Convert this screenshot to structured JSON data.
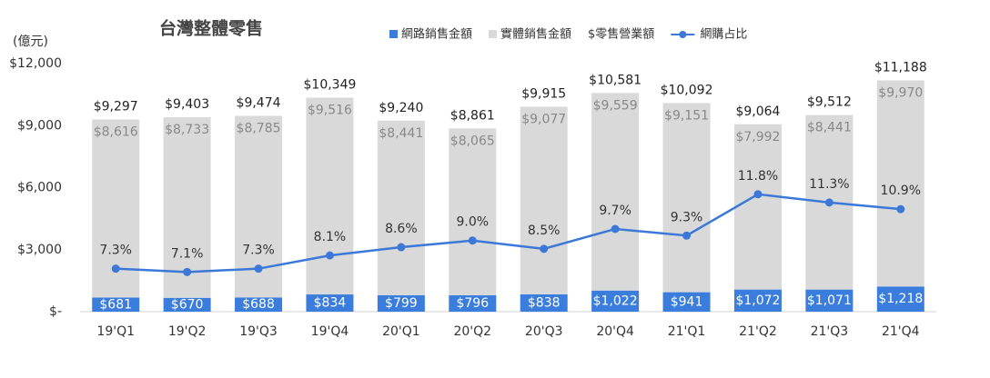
{
  "chart_data": {
    "type": "bar",
    "title": "台灣整體零售",
    "y_unit_label": "(億元)",
    "categories": [
      "19'Q1",
      "19'Q2",
      "19'Q3",
      "19'Q4",
      "20'Q1",
      "20'Q2",
      "20'Q3",
      "20'Q4",
      "21'Q1",
      "21'Q2",
      "21'Q3",
      "21'Q4"
    ],
    "ylim": [
      0,
      12000
    ],
    "yticks": [
      {
        "value": 0,
        "label": "$-"
      },
      {
        "value": 3000,
        "label": "$3,000"
      },
      {
        "value": 6000,
        "label": "$6,000"
      },
      {
        "value": 9000,
        "label": "$9,000"
      },
      {
        "value": 12000,
        "label": "$12,000"
      }
    ],
    "y2lim": [
      4.7,
      19.7
    ],
    "grid": false,
    "legend": "top",
    "series": [
      {
        "name": "網路銷售金額",
        "color": "#3b7ddd",
        "stack": true,
        "values": [
          681,
          670,
          688,
          834,
          799,
          796,
          838,
          1022,
          941,
          1072,
          1071,
          1218
        ],
        "value_labels": [
          "$681",
          "$670",
          "$688",
          "$834",
          "$799",
          "$796",
          "$838",
          "$1,022",
          "$941",
          "$1,072",
          "$1,071",
          "$1,218"
        ]
      },
      {
        "name": "實體銷售金額",
        "color": "#d9d9d9",
        "stack": true,
        "values": [
          8616,
          8733,
          8785,
          9516,
          8441,
          8065,
          9077,
          9559,
          9151,
          7992,
          8441,
          9970
        ],
        "value_labels": [
          "$8,616",
          "$8,733",
          "$8,785",
          "$9,516",
          "$8,441",
          "$8,065",
          "$9,077",
          "$9,559",
          "$9,151",
          "$7,992",
          "$8,441",
          "$9,970"
        ]
      },
      {
        "name": "$零售營業額",
        "color": "#222222",
        "values": [
          9297,
          9403,
          9474,
          10349,
          9240,
          8861,
          9915,
          10581,
          10092,
          9064,
          9512,
          11188
        ],
        "value_labels": [
          "$9,297",
          "$9,403",
          "$9,474",
          "$10,349",
          "$9,240",
          "$8,861",
          "$9,915",
          "$10,581",
          "$10,092",
          "$9,064",
          "$9,512",
          "$11,188"
        ]
      },
      {
        "name": "網購占比",
        "color": "#3c78d8",
        "axis": "y2",
        "values": [
          7.3,
          7.1,
          7.3,
          8.1,
          8.6,
          9.0,
          8.5,
          9.7,
          9.3,
          11.8,
          11.3,
          10.9
        ],
        "value_labels": [
          "7.3%",
          "7.1%",
          "7.3%",
          "8.1%",
          "8.6%",
          "9.0%",
          "8.5%",
          "9.7%",
          "9.3%",
          "11.8%",
          "11.3%",
          "10.9%"
        ]
      }
    ]
  }
}
